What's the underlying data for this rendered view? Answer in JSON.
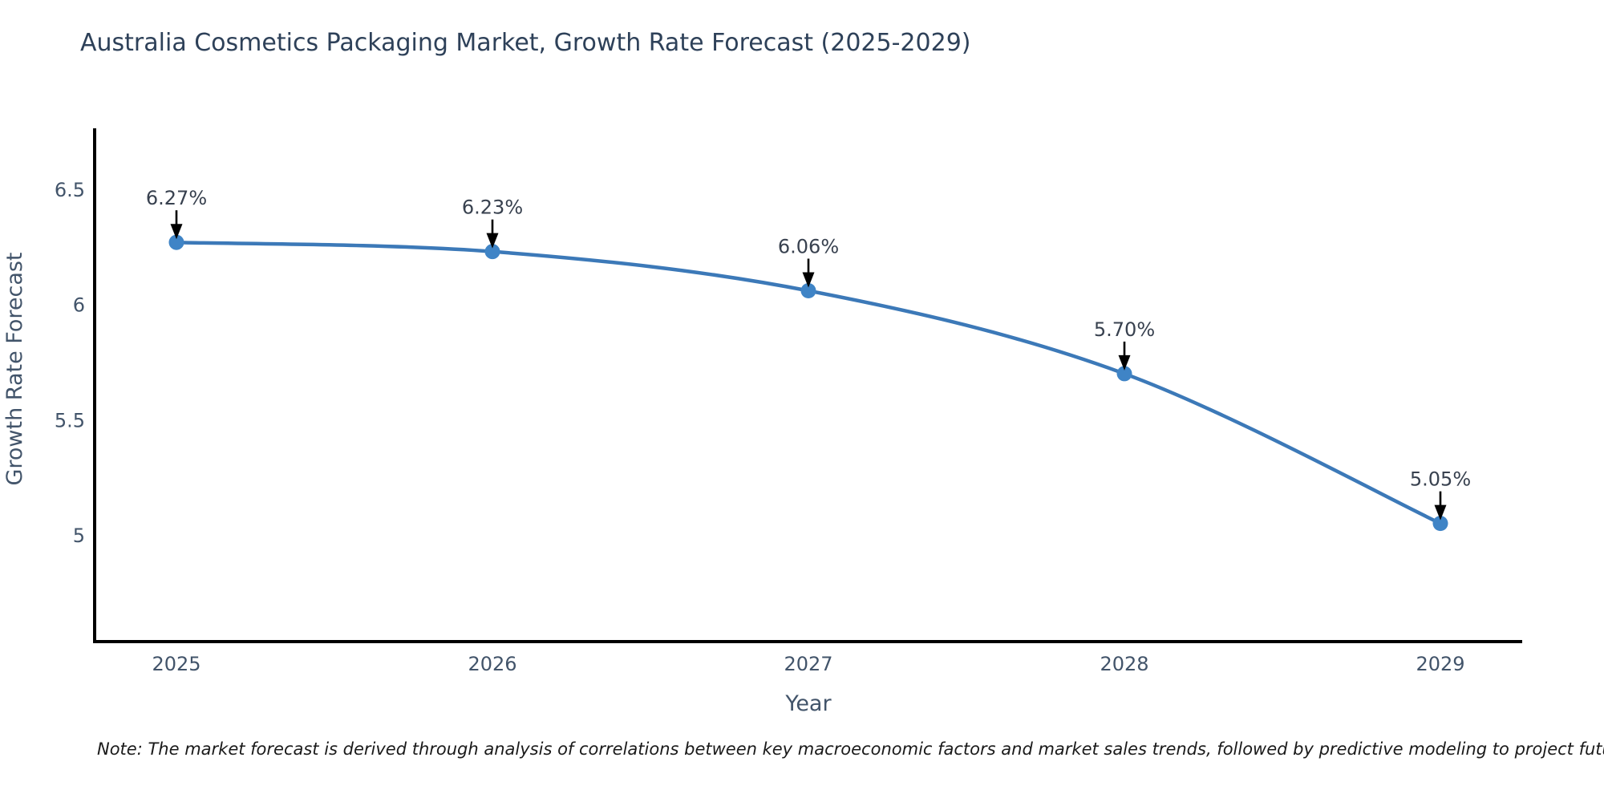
{
  "title": "Australia Cosmetics Packaging Market, Growth Rate Forecast (2025-2029)",
  "note": "Note: The market forecast is derived through analysis of correlations between key macroeconomic factors and market sales trends, followed by predictive modeling to project future sales",
  "chart_data": {
    "type": "line",
    "title": "Australia Cosmetics Packaging Market, Growth Rate Forecast (2025-2029)",
    "xlabel": "Year",
    "ylabel": "Growth Rate Forecast",
    "categories": [
      "2025",
      "2026",
      "2027",
      "2028",
      "2029"
    ],
    "series": [
      {
        "name": "Growth Rate Forecast",
        "values": [
          6.27,
          6.23,
          6.06,
          5.7,
          5.05
        ],
        "point_labels": [
          "6.27%",
          "6.23%",
          "6.06%",
          "5.70%",
          "5.05%"
        ]
      }
    ],
    "y_tick_values": [
      6.5,
      6,
      5.5,
      5
    ],
    "y_tick_labels": [
      "6.5",
      "6",
      "5.5",
      "5"
    ],
    "ylim": [
      4.537,
      6.765
    ],
    "grid": false,
    "legend": "none",
    "line_shape": "spline",
    "annotation_style": "value-label-with-down-arrow",
    "colors": {
      "line": "#3c79b8",
      "marker": "#3f84c6",
      "axis": "#000000",
      "arrow": "#000000",
      "title_text": "#2e4159",
      "tick_text": "#42546a",
      "label_text": "#38414f"
    }
  }
}
